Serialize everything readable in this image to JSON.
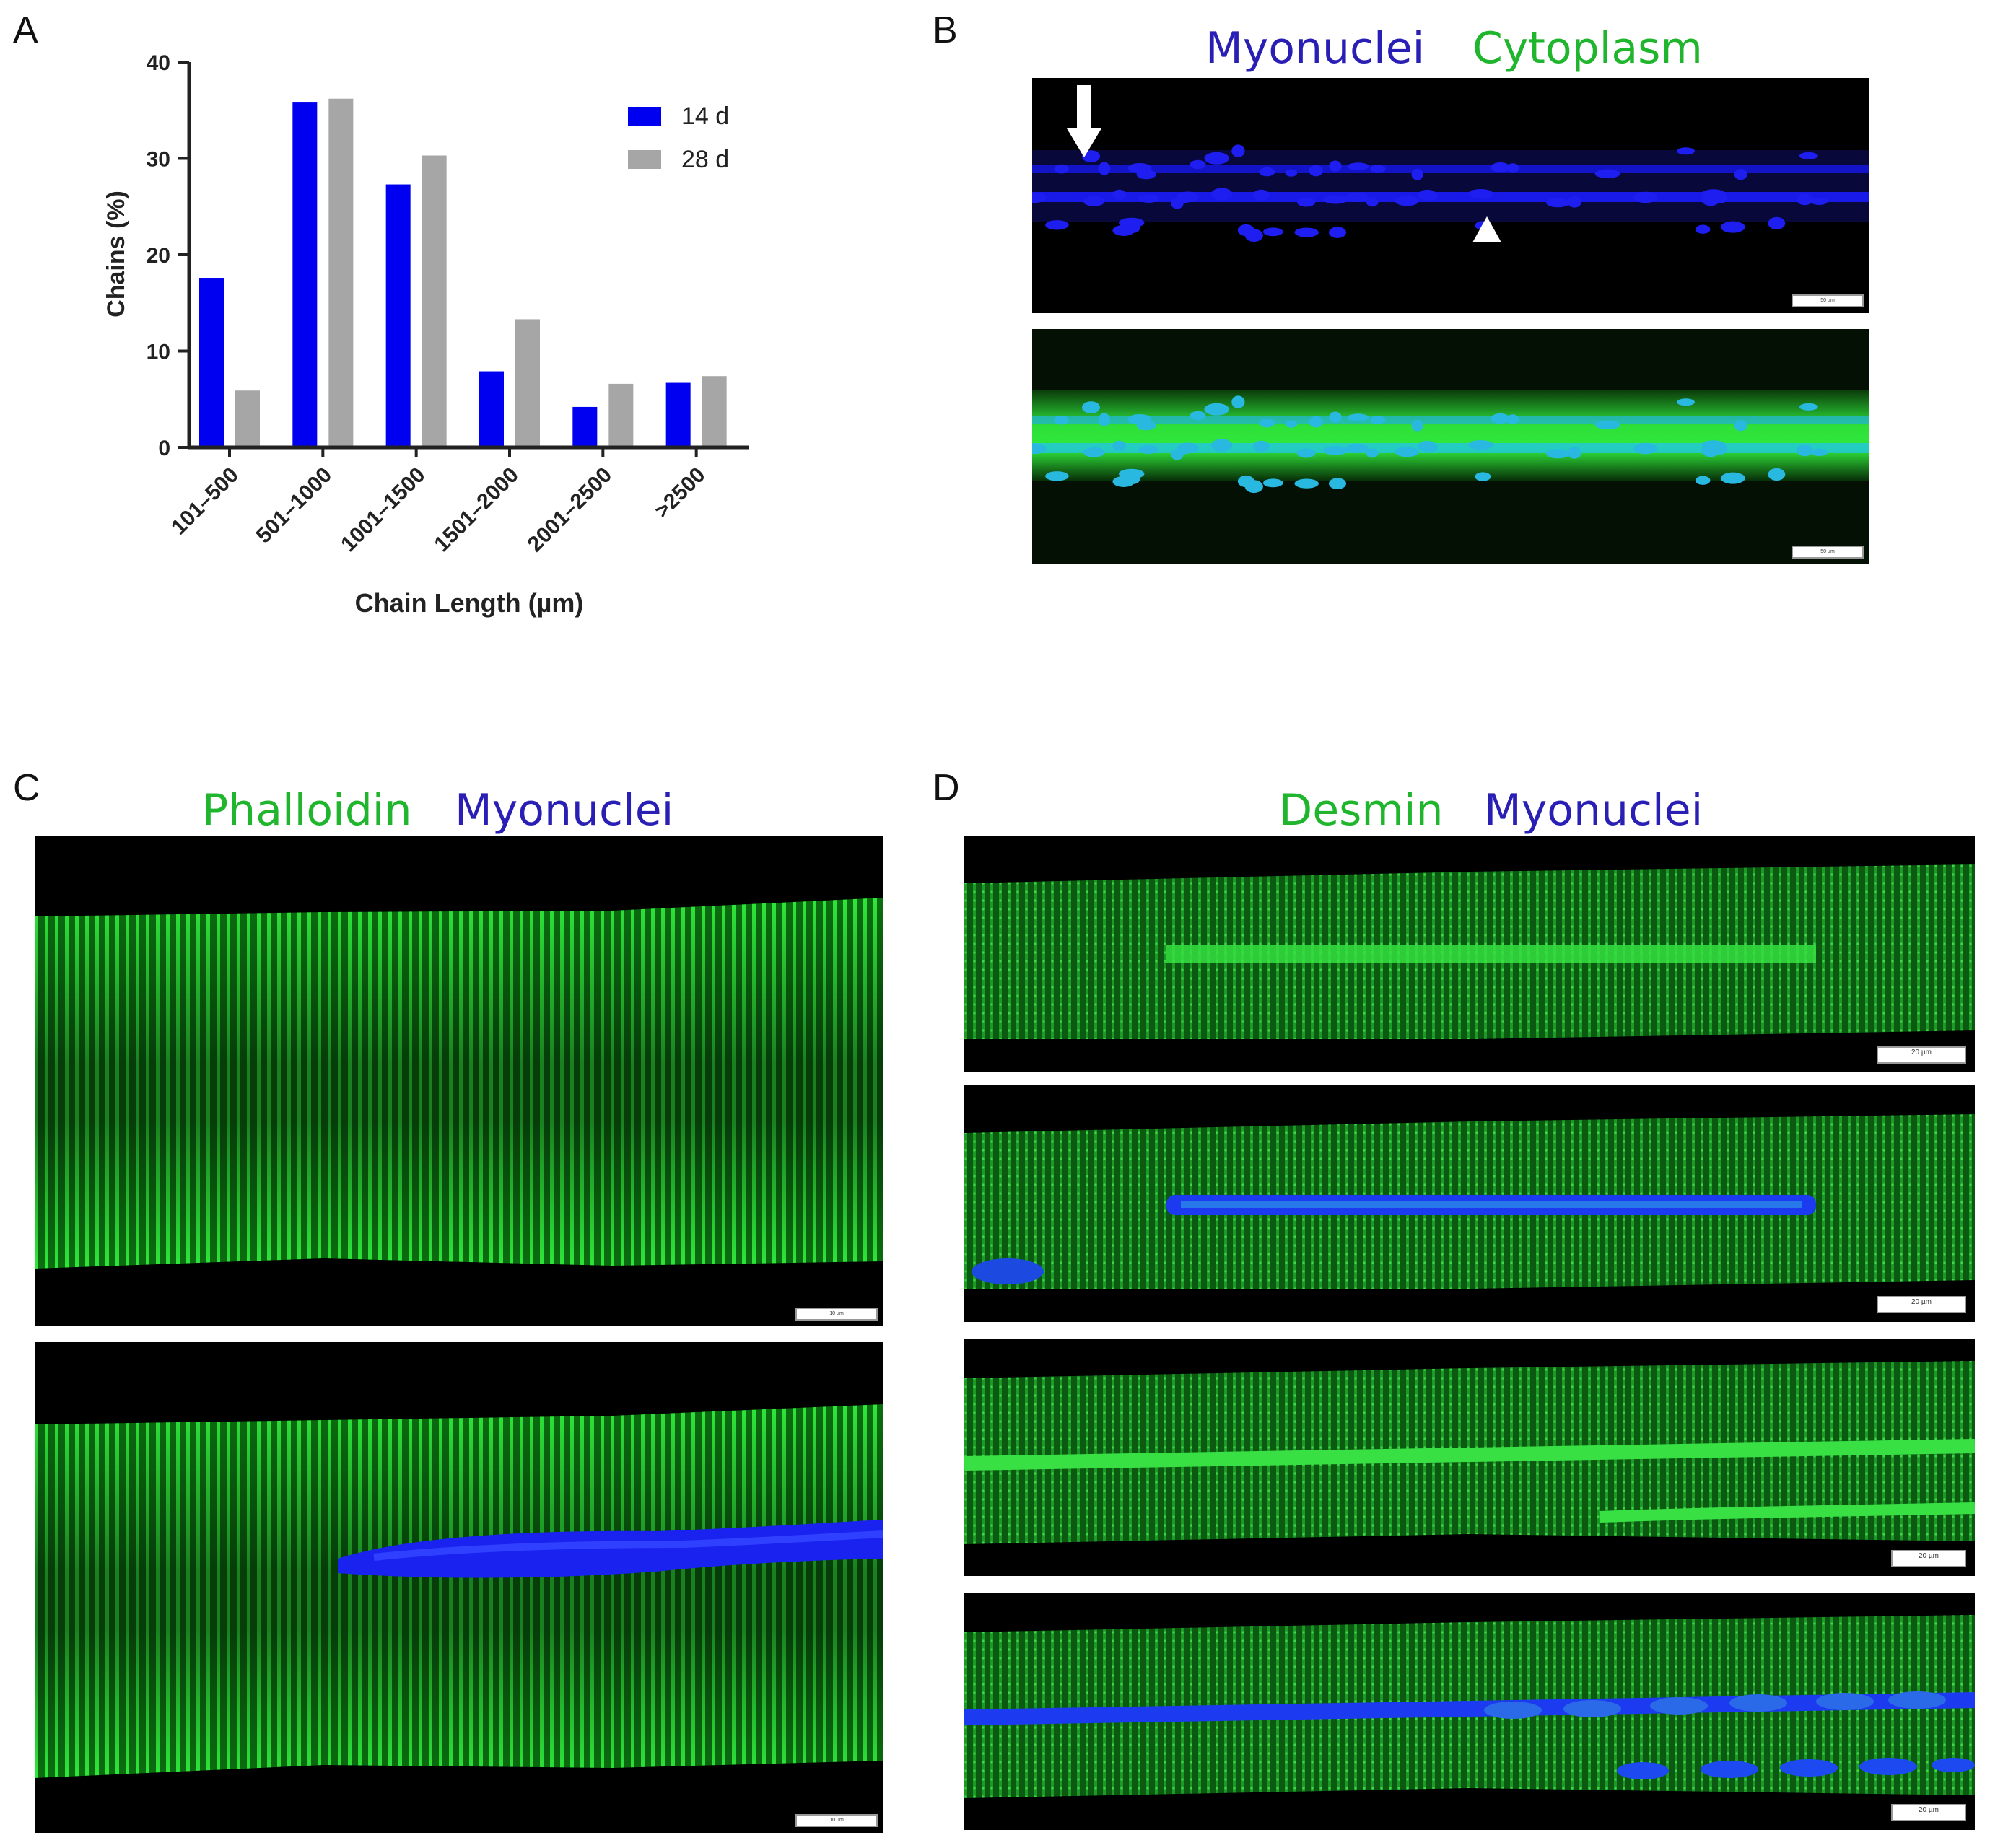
{
  "panels": {
    "A": {
      "letter": "A"
    },
    "B": {
      "letter": "B",
      "title_part1": "Myonuclei",
      "title_part2": "Cytoplasm"
    },
    "C": {
      "letter": "C",
      "title_part1": "Phalloidin",
      "title_part2": "Myonuclei"
    },
    "D": {
      "letter": "D",
      "title_part1": "Desmin",
      "title_part2": "Myonuclei"
    }
  },
  "scale_labels": {
    "B": "50 µm",
    "C": "10 µm",
    "D": "20 µm"
  },
  "colors": {
    "series_14d": "#0000f0",
    "series_28d": "#a6a6a6",
    "green_stain": "#1fb52c",
    "blue_stain": "#2a1fb5"
  },
  "chart_data": {
    "type": "bar",
    "categories": [
      "101–500",
      "501–1000",
      "1001–1500",
      "1501–2000",
      "2001–2500",
      ">2500"
    ],
    "series": [
      {
        "name": "14 d",
        "values": [
          17.6,
          35.8,
          27.3,
          7.9,
          4.2,
          6.7
        ]
      },
      {
        "name": "28 d",
        "values": [
          5.9,
          36.2,
          30.3,
          13.3,
          6.6,
          7.4
        ]
      }
    ],
    "xlabel": "Chain Length (µm)",
    "ylabel": "Chains (%)",
    "ylim": [
      0,
      40
    ],
    "yticks": [
      0,
      10,
      20,
      30,
      40
    ],
    "legend_position": "top-right",
    "grid": false
  }
}
